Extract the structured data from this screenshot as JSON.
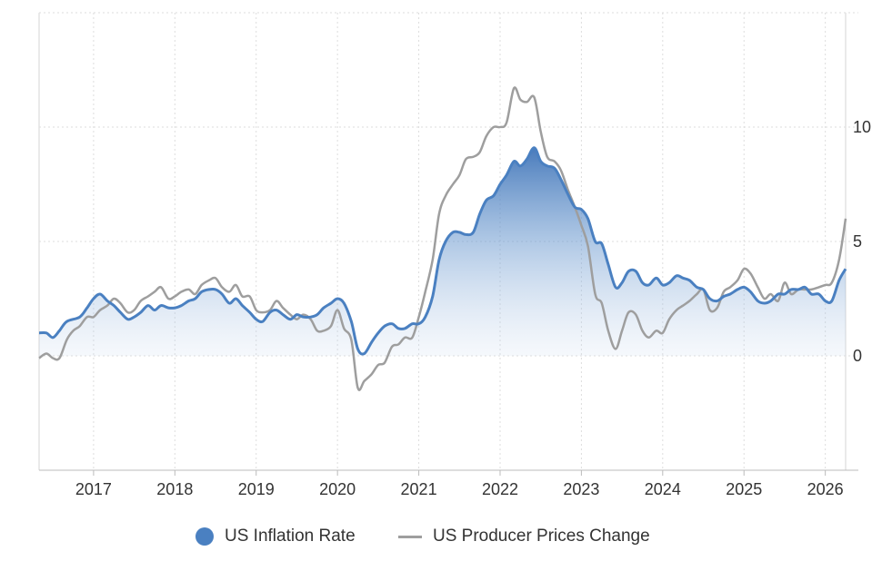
{
  "chart_data": {
    "type": "line",
    "title": "",
    "xlabel": "",
    "ylabel": "",
    "ylim": [
      -5,
      15
    ],
    "xlim": [
      2016.33,
      2026.25
    ],
    "grid": true,
    "legend_position": "bottom",
    "y_ticks": [
      0,
      5,
      10
    ],
    "y_tick_labels": [
      "0",
      "5",
      "10"
    ],
    "x_ticks": [
      2017,
      2018,
      2019,
      2020,
      2021,
      2022,
      2023,
      2024,
      2025,
      2026
    ],
    "x_tick_labels": [
      "2017",
      "2018",
      "2019",
      "2020",
      "2021",
      "2022",
      "2023",
      "2024",
      "2025",
      "2026"
    ],
    "series": [
      {
        "name": "US Inflation Rate",
        "color": "#4a80c1",
        "style": "area",
        "points": [
          [
            2016.33,
            1.0
          ],
          [
            2016.42,
            1.0
          ],
          [
            2016.5,
            0.8
          ],
          [
            2016.58,
            1.1
          ],
          [
            2016.67,
            1.5
          ],
          [
            2016.83,
            1.7
          ],
          [
            2016.92,
            2.1
          ],
          [
            2017.0,
            2.5
          ],
          [
            2017.08,
            2.7
          ],
          [
            2017.17,
            2.4
          ],
          [
            2017.25,
            2.2
          ],
          [
            2017.33,
            1.9
          ],
          [
            2017.42,
            1.6
          ],
          [
            2017.5,
            1.7
          ],
          [
            2017.58,
            1.9
          ],
          [
            2017.67,
            2.2
          ],
          [
            2017.75,
            2.0
          ],
          [
            2017.83,
            2.2
          ],
          [
            2017.92,
            2.1
          ],
          [
            2018.0,
            2.1
          ],
          [
            2018.08,
            2.2
          ],
          [
            2018.17,
            2.4
          ],
          [
            2018.25,
            2.5
          ],
          [
            2018.33,
            2.8
          ],
          [
            2018.42,
            2.9
          ],
          [
            2018.5,
            2.9
          ],
          [
            2018.58,
            2.7
          ],
          [
            2018.67,
            2.3
          ],
          [
            2018.75,
            2.5
          ],
          [
            2018.83,
            2.2
          ],
          [
            2018.92,
            1.9
          ],
          [
            2019.0,
            1.6
          ],
          [
            2019.08,
            1.5
          ],
          [
            2019.17,
            1.9
          ],
          [
            2019.25,
            2.0
          ],
          [
            2019.33,
            1.8
          ],
          [
            2019.42,
            1.6
          ],
          [
            2019.5,
            1.8
          ],
          [
            2019.58,
            1.7
          ],
          [
            2019.67,
            1.7
          ],
          [
            2019.75,
            1.8
          ],
          [
            2019.83,
            2.1
          ],
          [
            2019.92,
            2.3
          ],
          [
            2020.0,
            2.5
          ],
          [
            2020.08,
            2.3
          ],
          [
            2020.17,
            1.5
          ],
          [
            2020.25,
            0.3
          ],
          [
            2020.33,
            0.1
          ],
          [
            2020.42,
            0.6
          ],
          [
            2020.5,
            1.0
          ],
          [
            2020.58,
            1.3
          ],
          [
            2020.67,
            1.4
          ],
          [
            2020.75,
            1.2
          ],
          [
            2020.83,
            1.2
          ],
          [
            2020.92,
            1.4
          ],
          [
            2021.0,
            1.4
          ],
          [
            2021.08,
            1.7
          ],
          [
            2021.17,
            2.6
          ],
          [
            2021.25,
            4.2
          ],
          [
            2021.33,
            5.0
          ],
          [
            2021.42,
            5.4
          ],
          [
            2021.5,
            5.4
          ],
          [
            2021.58,
            5.3
          ],
          [
            2021.67,
            5.4
          ],
          [
            2021.75,
            6.2
          ],
          [
            2021.83,
            6.8
          ],
          [
            2021.92,
            7.0
          ],
          [
            2022.0,
            7.5
          ],
          [
            2022.08,
            7.9
          ],
          [
            2022.17,
            8.5
          ],
          [
            2022.25,
            8.3
          ],
          [
            2022.33,
            8.6
          ],
          [
            2022.42,
            9.1
          ],
          [
            2022.5,
            8.5
          ],
          [
            2022.58,
            8.3
          ],
          [
            2022.67,
            8.2
          ],
          [
            2022.75,
            7.7
          ],
          [
            2022.83,
            7.1
          ],
          [
            2022.92,
            6.5
          ],
          [
            2023.0,
            6.4
          ],
          [
            2023.08,
            6.0
          ],
          [
            2023.17,
            5.0
          ],
          [
            2023.25,
            4.9
          ],
          [
            2023.33,
            4.0
          ],
          [
            2023.42,
            3.0
          ],
          [
            2023.5,
            3.2
          ],
          [
            2023.58,
            3.7
          ],
          [
            2023.67,
            3.7
          ],
          [
            2023.75,
            3.2
          ],
          [
            2023.83,
            3.1
          ],
          [
            2023.92,
            3.4
          ],
          [
            2024.0,
            3.1
          ],
          [
            2024.08,
            3.2
          ],
          [
            2024.17,
            3.5
          ],
          [
            2024.25,
            3.4
          ],
          [
            2024.33,
            3.3
          ],
          [
            2024.42,
            3.0
          ],
          [
            2024.5,
            2.9
          ],
          [
            2024.58,
            2.5
          ],
          [
            2024.67,
            2.4
          ],
          [
            2024.75,
            2.6
          ],
          [
            2024.83,
            2.7
          ],
          [
            2024.92,
            2.9
          ],
          [
            2025.0,
            3.0
          ],
          [
            2025.08,
            2.8
          ],
          [
            2025.17,
            2.4
          ],
          [
            2025.25,
            2.3
          ],
          [
            2025.33,
            2.4
          ],
          [
            2025.42,
            2.7
          ],
          [
            2025.5,
            2.7
          ],
          [
            2025.58,
            2.9
          ],
          [
            2025.67,
            2.9
          ],
          [
            2025.75,
            3.0
          ],
          [
            2025.83,
            2.7
          ],
          [
            2025.92,
            2.7
          ],
          [
            2026.0,
            2.4
          ],
          [
            2026.08,
            2.4
          ],
          [
            2026.17,
            3.3
          ],
          [
            2026.25,
            3.8
          ]
        ]
      },
      {
        "name": "US Producer Prices Change",
        "color": "#9e9e9e",
        "style": "line",
        "points": [
          [
            2016.33,
            -0.1
          ],
          [
            2016.42,
            0.1
          ],
          [
            2016.5,
            -0.1
          ],
          [
            2016.58,
            -0.1
          ],
          [
            2016.67,
            0.7
          ],
          [
            2016.75,
            1.1
          ],
          [
            2016.83,
            1.3
          ],
          [
            2016.92,
            1.7
          ],
          [
            2017.0,
            1.7
          ],
          [
            2017.08,
            2.0
          ],
          [
            2017.17,
            2.2
          ],
          [
            2017.25,
            2.5
          ],
          [
            2017.33,
            2.3
          ],
          [
            2017.42,
            1.9
          ],
          [
            2017.5,
            2.0
          ],
          [
            2017.58,
            2.4
          ],
          [
            2017.67,
            2.6
          ],
          [
            2017.75,
            2.8
          ],
          [
            2017.83,
            3.0
          ],
          [
            2017.92,
            2.5
          ],
          [
            2018.0,
            2.6
          ],
          [
            2018.08,
            2.8
          ],
          [
            2018.17,
            2.9
          ],
          [
            2018.25,
            2.7
          ],
          [
            2018.33,
            3.1
          ],
          [
            2018.42,
            3.3
          ],
          [
            2018.5,
            3.4
          ],
          [
            2018.58,
            3.0
          ],
          [
            2018.67,
            2.8
          ],
          [
            2018.75,
            3.1
          ],
          [
            2018.83,
            2.6
          ],
          [
            2018.92,
            2.6
          ],
          [
            2019.0,
            2.0
          ],
          [
            2019.08,
            1.9
          ],
          [
            2019.17,
            2.0
          ],
          [
            2019.25,
            2.4
          ],
          [
            2019.33,
            2.1
          ],
          [
            2019.42,
            1.8
          ],
          [
            2019.5,
            1.6
          ],
          [
            2019.58,
            1.8
          ],
          [
            2019.67,
            1.6
          ],
          [
            2019.75,
            1.1
          ],
          [
            2019.83,
            1.1
          ],
          [
            2019.92,
            1.3
          ],
          [
            2020.0,
            2.0
          ],
          [
            2020.08,
            1.2
          ],
          [
            2020.17,
            0.7
          ],
          [
            2020.25,
            -1.4
          ],
          [
            2020.33,
            -1.1
          ],
          [
            2020.42,
            -0.8
          ],
          [
            2020.5,
            -0.4
          ],
          [
            2020.58,
            -0.3
          ],
          [
            2020.67,
            0.4
          ],
          [
            2020.75,
            0.5
          ],
          [
            2020.83,
            0.8
          ],
          [
            2020.92,
            0.8
          ],
          [
            2021.0,
            1.7
          ],
          [
            2021.08,
            2.8
          ],
          [
            2021.17,
            4.2
          ],
          [
            2021.25,
            6.2
          ],
          [
            2021.33,
            7.0
          ],
          [
            2021.42,
            7.5
          ],
          [
            2021.5,
            7.9
          ],
          [
            2021.58,
            8.6
          ],
          [
            2021.67,
            8.7
          ],
          [
            2021.75,
            8.9
          ],
          [
            2021.83,
            9.6
          ],
          [
            2021.92,
            10.0
          ],
          [
            2022.0,
            10.0
          ],
          [
            2022.08,
            10.2
          ],
          [
            2022.17,
            11.7
          ],
          [
            2022.25,
            11.2
          ],
          [
            2022.33,
            11.1
          ],
          [
            2022.42,
            11.3
          ],
          [
            2022.5,
            9.8
          ],
          [
            2022.58,
            8.7
          ],
          [
            2022.67,
            8.5
          ],
          [
            2022.75,
            8.1
          ],
          [
            2022.83,
            7.3
          ],
          [
            2022.92,
            6.5
          ],
          [
            2023.0,
            5.7
          ],
          [
            2023.08,
            4.8
          ],
          [
            2023.17,
            2.7
          ],
          [
            2023.25,
            2.3
          ],
          [
            2023.33,
            1.1
          ],
          [
            2023.42,
            0.3
          ],
          [
            2023.5,
            1.1
          ],
          [
            2023.58,
            1.9
          ],
          [
            2023.67,
            1.8
          ],
          [
            2023.75,
            1.1
          ],
          [
            2023.83,
            0.8
          ],
          [
            2023.92,
            1.1
          ],
          [
            2024.0,
            1.0
          ],
          [
            2024.08,
            1.6
          ],
          [
            2024.17,
            2.0
          ],
          [
            2024.25,
            2.2
          ],
          [
            2024.33,
            2.4
          ],
          [
            2024.42,
            2.7
          ],
          [
            2024.5,
            2.9
          ],
          [
            2024.58,
            2.0
          ],
          [
            2024.67,
            2.1
          ],
          [
            2024.75,
            2.8
          ],
          [
            2024.83,
            3.0
          ],
          [
            2024.92,
            3.3
          ],
          [
            2025.0,
            3.8
          ],
          [
            2025.08,
            3.6
          ],
          [
            2025.17,
            3.0
          ],
          [
            2025.25,
            2.5
          ],
          [
            2025.33,
            2.7
          ],
          [
            2025.42,
            2.4
          ],
          [
            2025.5,
            3.2
          ],
          [
            2025.58,
            2.7
          ],
          [
            2025.67,
            2.9
          ],
          [
            2025.75,
            2.9
          ],
          [
            2025.83,
            2.9
          ],
          [
            2025.92,
            3.0
          ],
          [
            2026.0,
            3.1
          ],
          [
            2026.08,
            3.2
          ],
          [
            2026.17,
            4.2
          ],
          [
            2026.25,
            6.0
          ]
        ]
      }
    ]
  }
}
